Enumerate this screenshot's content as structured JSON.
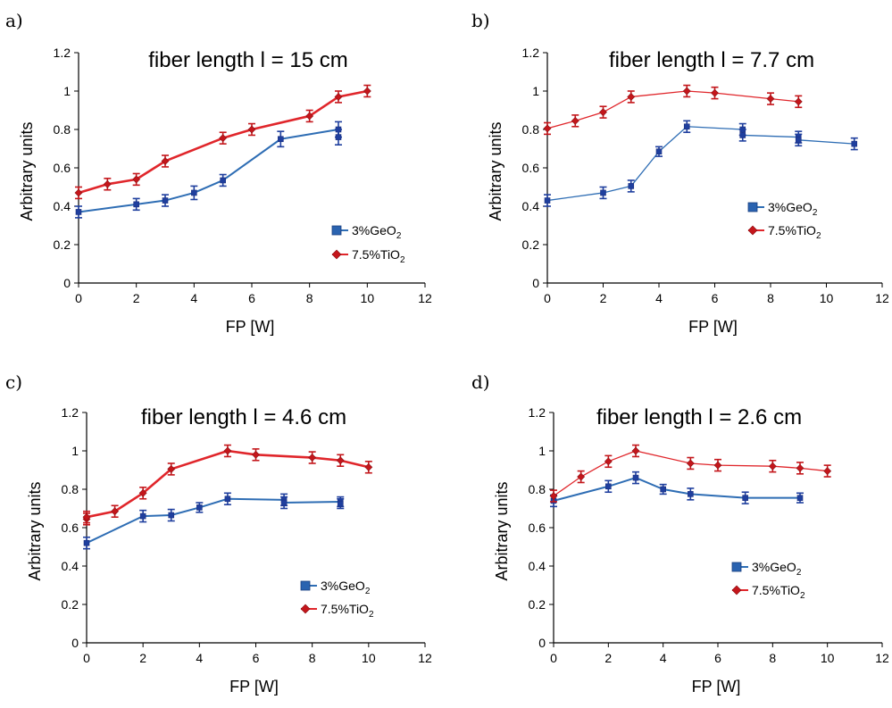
{
  "colors": {
    "geo2_line": "#2e6db4",
    "geo2_marker": "#1f3f9e",
    "tio2_line": "#e0262b",
    "tio2_marker": "#c4161b",
    "axis": "#000000"
  },
  "chart_data": [
    {
      "panel": "a)",
      "type": "line",
      "title": "fiber length l = 15 cm",
      "xlabel": "FP [W]",
      "ylabel": "Arbitrary units",
      "xlim": [
        0,
        12
      ],
      "ylim": [
        0,
        1.2
      ],
      "x_ticks": [
        "0",
        "2",
        "4",
        "6",
        "8",
        "10",
        "12"
      ],
      "y_ticks": [
        "0",
        "0.2",
        "0.4",
        "0.6",
        "0.8",
        "1",
        "1.2"
      ],
      "legend": {
        "position": "lower-right"
      },
      "series": [
        {
          "name": "3%GeO",
          "name_sub": "2",
          "x": [
            0,
            2,
            3,
            4,
            5,
            7,
            9,
            9
          ],
          "y": [
            0.37,
            0.41,
            0.43,
            0.47,
            0.535,
            0.75,
            0.8,
            0.76
          ],
          "err": [
            0.03,
            0.03,
            0.03,
            0.035,
            0.03,
            0.04,
            0.04,
            0.04
          ]
        },
        {
          "name": "7.5%TiO",
          "name_sub": "2",
          "x": [
            0,
            1,
            2,
            3,
            5,
            6,
            8,
            9,
            10
          ],
          "y": [
            0.47,
            0.515,
            0.54,
            0.635,
            0.755,
            0.8,
            0.87,
            0.97,
            1.0
          ],
          "err": [
            0.03,
            0.03,
            0.03,
            0.03,
            0.03,
            0.03,
            0.03,
            0.03,
            0.03
          ]
        }
      ]
    },
    {
      "panel": "b)",
      "type": "line",
      "title": "fiber length l = 7.7 cm",
      "xlabel": "FP [W]",
      "ylabel": "Arbitrary units",
      "xlim": [
        0,
        12
      ],
      "ylim": [
        0,
        1.2
      ],
      "x_ticks": [
        "0",
        "2",
        "4",
        "6",
        "8",
        "10",
        "12"
      ],
      "y_ticks": [
        "0",
        "0.2",
        "0.4",
        "0.6",
        "0.8",
        "1",
        "1.2"
      ],
      "legend": {
        "position": "center-right"
      },
      "series": [
        {
          "name": "3%GeO",
          "name_sub": "2",
          "x": [
            0,
            2,
            3,
            4,
            5,
            7,
            7,
            9,
            9,
            11
          ],
          "y": [
            0.43,
            0.47,
            0.505,
            0.685,
            0.815,
            0.8,
            0.77,
            0.76,
            0.745,
            0.725
          ],
          "err": [
            0.03,
            0.03,
            0.03,
            0.025,
            0.03,
            0.03,
            0.03,
            0.03,
            0.03,
            0.03
          ]
        },
        {
          "name": "7.5%TiO",
          "name_sub": "2",
          "x": [
            0,
            1,
            2,
            3,
            5,
            6,
            8,
            9
          ],
          "y": [
            0.805,
            0.845,
            0.89,
            0.97,
            1.0,
            0.99,
            0.96,
            0.945
          ],
          "err": [
            0.03,
            0.03,
            0.03,
            0.03,
            0.03,
            0.03,
            0.03,
            0.03
          ]
        }
      ]
    },
    {
      "panel": "c)",
      "type": "line",
      "title": "fiber length l = 4.6 cm",
      "xlabel": "FP [W]",
      "ylabel": "Arbitrary units",
      "xlim": [
        0,
        12
      ],
      "ylim": [
        0,
        1.2
      ],
      "x_ticks": [
        "0",
        "2",
        "4",
        "6",
        "8",
        "10",
        "12"
      ],
      "y_ticks": [
        "0",
        "0.2",
        "0.4",
        "0.6",
        "0.8",
        "1",
        "1.2"
      ],
      "legend": {
        "position": "lower-right"
      },
      "series": [
        {
          "name": "3%GeO",
          "name_sub": "2",
          "x": [
            0,
            2,
            3,
            4,
            5,
            7,
            7,
            9,
            9
          ],
          "y": [
            0.52,
            0.66,
            0.665,
            0.705,
            0.75,
            0.745,
            0.73,
            0.735,
            0.725
          ],
          "err": [
            0.03,
            0.03,
            0.03,
            0.025,
            0.03,
            0.03,
            0.03,
            0.025,
            0.025
          ]
        },
        {
          "name": "7.5%TiO",
          "name_sub": "2",
          "x": [
            0,
            0,
            1,
            2,
            3,
            5,
            6,
            8,
            9,
            10
          ],
          "y": [
            0.645,
            0.655,
            0.685,
            0.78,
            0.905,
            1.0,
            0.98,
            0.965,
            0.95,
            0.915
          ],
          "err": [
            0.03,
            0.03,
            0.03,
            0.03,
            0.03,
            0.03,
            0.03,
            0.03,
            0.03,
            0.03
          ]
        }
      ]
    },
    {
      "panel": "d)",
      "type": "line",
      "title": "fiber length l = 2.6 cm",
      "xlabel": "FP [W]",
      "ylabel": "Arbitrary units",
      "xlim": [
        0,
        12
      ],
      "ylim": [
        0,
        1.2
      ],
      "x_ticks": [
        "0",
        "2",
        "4",
        "6",
        "8",
        "10",
        "12"
      ],
      "y_ticks": [
        "0",
        "0.2",
        "0.4",
        "0.6",
        "0.8",
        "1",
        "1.2"
      ],
      "legend": {
        "position": "lower-right"
      },
      "series": [
        {
          "name": "3%GeO",
          "name_sub": "2",
          "x": [
            0,
            2,
            3,
            4,
            5,
            7,
            9
          ],
          "y": [
            0.74,
            0.815,
            0.86,
            0.8,
            0.775,
            0.755,
            0.755
          ],
          "err": [
            0.03,
            0.03,
            0.03,
            0.025,
            0.03,
            0.03,
            0.025
          ]
        },
        {
          "name": "7.5%TiO",
          "name_sub": "2",
          "x": [
            0,
            1,
            2,
            3,
            5,
            6,
            8,
            9,
            10
          ],
          "y": [
            0.765,
            0.865,
            0.945,
            1.0,
            0.935,
            0.925,
            0.92,
            0.91,
            0.895
          ],
          "err": [
            0.03,
            0.03,
            0.03,
            0.03,
            0.03,
            0.03,
            0.03,
            0.03,
            0.03
          ]
        }
      ]
    }
  ]
}
